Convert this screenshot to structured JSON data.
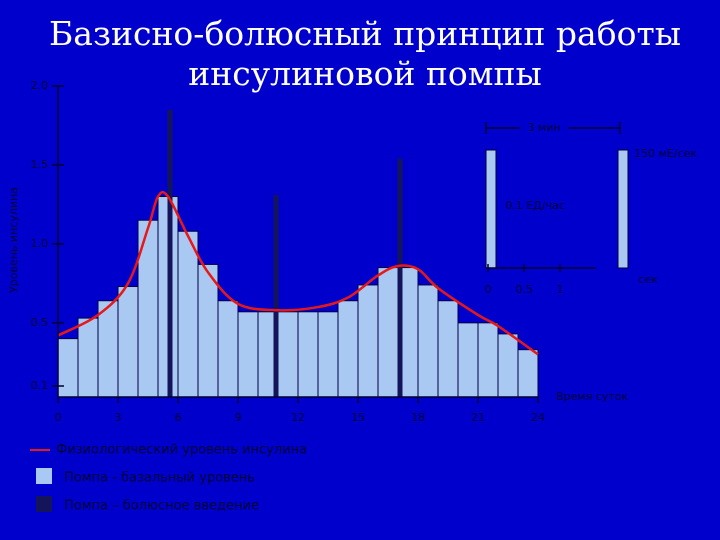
{
  "title": [
    "Базисно-болюсный принцип работы",
    "инсулиновой помпы"
  ],
  "chart_data": {
    "type": "bar",
    "ylabel": "Уровень инсулина",
    "xlabel": "Время суток",
    "xlim": [
      0,
      24
    ],
    "xticks": [
      0,
      3,
      6,
      9,
      12,
      15,
      18,
      21,
      24
    ],
    "ylim": [
      0.1,
      2.0
    ],
    "yticks": [
      {
        "value": 0.1,
        "label": "0.1"
      },
      {
        "value": 0.5,
        "label": "0.5"
      },
      {
        "value": 1.0,
        "label": "1.0"
      },
      {
        "value": 1.5,
        "label": "1.5"
      },
      {
        "value": 2.0,
        "label": "2.0"
      }
    ],
    "series": [
      {
        "name": "Помпа - базальный уровень",
        "color": "#a9c9f2",
        "bins": [
          0,
          1,
          2,
          3,
          4,
          5,
          6,
          7,
          8,
          9,
          10,
          11,
          12,
          13,
          14,
          15,
          16,
          17,
          18,
          19,
          20,
          21,
          22,
          23,
          24
        ],
        "values": [
          0.4,
          0.53,
          0.64,
          0.73,
          1.15,
          1.3,
          1.08,
          0.87,
          0.64,
          0.57,
          0.57,
          0.57,
          0.57,
          0.57,
          0.64,
          0.74,
          0.85,
          0.85,
          0.74,
          0.64,
          0.5,
          0.5,
          0.43,
          0.33
        ]
      },
      {
        "name": "Помпа – болюсное введение",
        "color": "#14145a",
        "x": [
          5.6,
          10.9,
          17.1
        ],
        "values": [
          1.85,
          1.31,
          1.54
        ]
      },
      {
        "name": "Физиологический уровень инсулина",
        "color": "#e81818",
        "x": [
          0,
          2,
          3.5,
          4.5,
          5,
          5.5,
          6.5,
          7.5,
          9,
          11,
          13,
          14.5,
          16,
          17,
          18,
          19,
          21,
          22,
          24
        ],
        "values": [
          0.42,
          0.55,
          0.75,
          1.1,
          1.3,
          1.3,
          1.05,
          0.82,
          0.62,
          0.58,
          0.6,
          0.66,
          0.8,
          0.86,
          0.84,
          0.72,
          0.55,
          0.48,
          0.3
        ]
      }
    ]
  },
  "inset": {
    "top_label": "3 мин",
    "rate_label": "0.1 ЕД/час",
    "bolus_label": "150 мЕ/сек",
    "xlabel": "сек",
    "xticks": [
      0,
      0.5,
      1
    ]
  }
}
